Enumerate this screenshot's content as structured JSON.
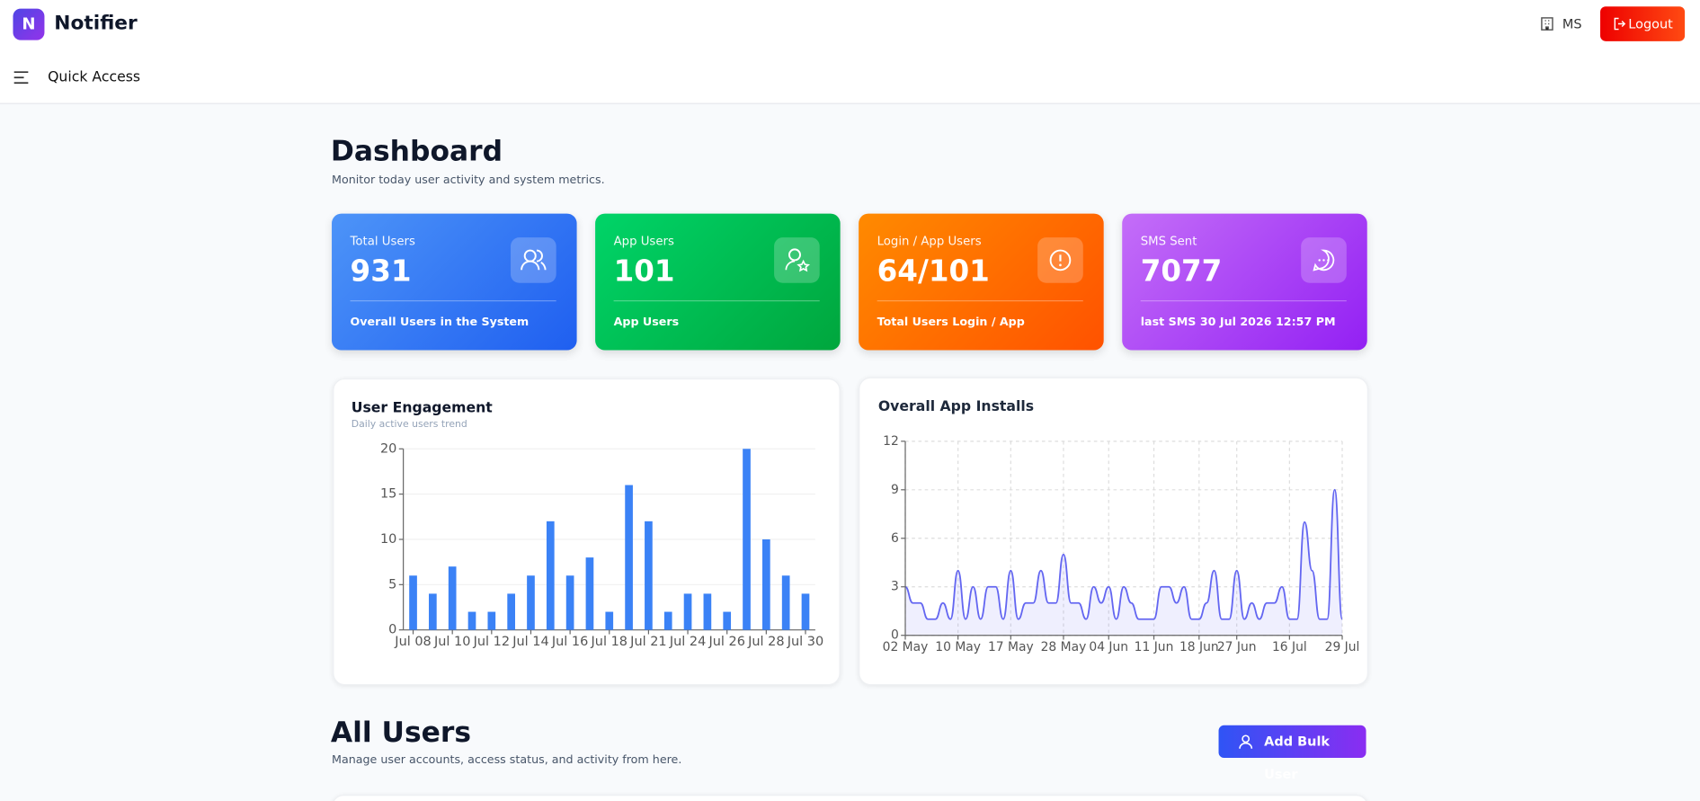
{
  "header": {
    "brand_initial": "N",
    "brand": "Notifier",
    "user": "MS",
    "logout": "Logout",
    "quick_access": "Quick Access"
  },
  "dashboard": {
    "title": "Dashboard",
    "subtitle": "Monitor today user activity and system metrics."
  },
  "cards": [
    {
      "label": "Total Users",
      "value": 931,
      "footer": "Overall Users in the System"
    },
    {
      "label": "App Users",
      "value": 101,
      "footer": "App Users"
    },
    {
      "label": "Login / App Users",
      "value": "64/101",
      "footer": "Total Users Login / App"
    },
    {
      "label": "SMS Sent",
      "value": 7077,
      "footer": "last SMS 30 Jul 2026 12:57 PM"
    }
  ],
  "chart_data": [
    {
      "type": "bar",
      "title": "User Engagement",
      "subtitle": "Daily active users trend",
      "color": "#3b82f6",
      "categories": [
        "Jul 08",
        null,
        "Jul 10",
        null,
        "Jul 12",
        null,
        "Jul 14",
        null,
        "Jul 16",
        null,
        "Jul 18",
        null,
        "Jul 21",
        null,
        "Jul 24",
        null,
        "Jul 26",
        null,
        "Jul 28",
        null,
        "Jul 30"
      ],
      "values": [
        6,
        4,
        7,
        2,
        2,
        4,
        6,
        12,
        6,
        8,
        2,
        16,
        12,
        2,
        4,
        4,
        2,
        20,
        10,
        6,
        4
      ],
      "ylim": [
        0,
        20
      ],
      "yticks": [
        0,
        5,
        10,
        15,
        20
      ],
      "grid": true
    },
    {
      "type": "line",
      "title": "Overall App Installs",
      "color": "#6366f1",
      "categories": [
        "02 May",
        null,
        null,
        null,
        null,
        null,
        null,
        "10 May",
        null,
        null,
        null,
        null,
        null,
        null,
        "17 May",
        null,
        null,
        null,
        null,
        null,
        null,
        "28 May",
        null,
        null,
        null,
        null,
        null,
        "04 Jun",
        null,
        null,
        null,
        null,
        null,
        "11 Jun",
        null,
        null,
        null,
        null,
        null,
        "18 Jun",
        null,
        null,
        null,
        null,
        "27 Jun",
        null,
        null,
        null,
        null,
        null,
        null,
        "16 Jul",
        null,
        null,
        null,
        null,
        null,
        null,
        "29 Jul"
      ],
      "values": [
        3,
        2,
        2,
        1,
        1,
        2,
        1,
        4,
        1,
        3,
        1,
        3,
        3,
        1,
        4,
        1,
        2,
        2,
        4,
        2,
        2,
        5,
        2,
        2,
        1,
        3,
        2,
        3,
        1,
        3,
        2,
        1,
        1,
        1,
        3,
        3,
        2,
        3,
        1,
        1,
        2,
        4,
        1,
        1,
        4,
        1,
        2,
        1,
        2,
        2,
        3,
        1,
        1,
        7,
        4,
        1,
        1,
        9,
        1
      ],
      "ylim": [
        0,
        12
      ],
      "yticks": [
        0,
        3,
        6,
        9,
        12
      ],
      "grid": true
    }
  ],
  "users": {
    "title": "All Users",
    "subtitle": "Manage user accounts, access status, and activity from here.",
    "button": "Add Bulk User"
  }
}
